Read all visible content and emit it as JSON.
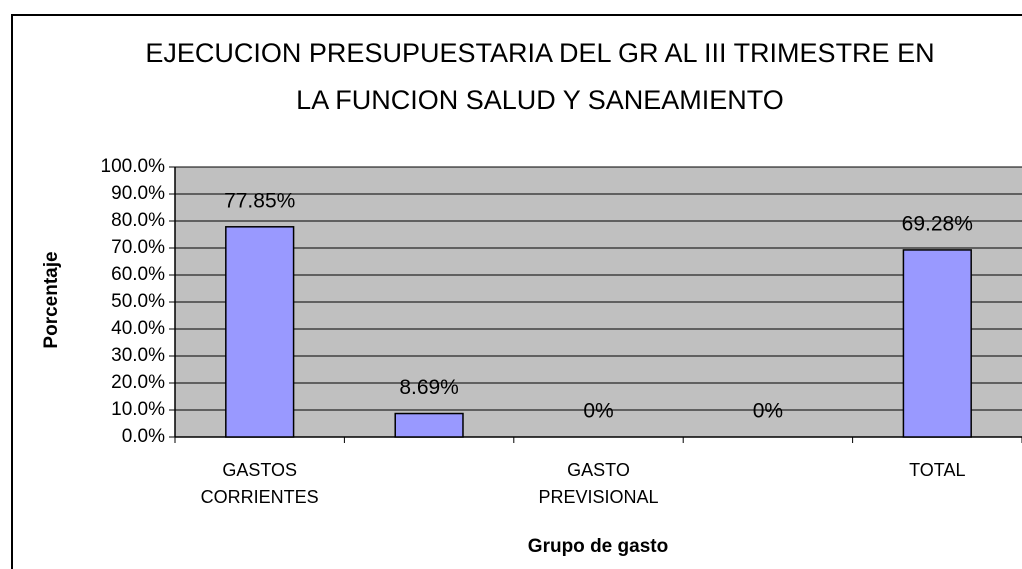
{
  "chart_data": {
    "type": "bar",
    "title": "EJECUCION PRESUPUESTARIA DEL GR AL III TRIMESTRE EN LA FUNCION SALUD Y SANEAMIENTO",
    "xlabel": "Grupo de gasto",
    "ylabel": "Porcentaje",
    "categories": [
      "GASTOS CORRIENTES",
      null,
      "GASTO PREVISIONAL",
      null,
      "TOTAL"
    ],
    "values": [
      77.85,
      8.69,
      0,
      0,
      69.28
    ],
    "value_labels": [
      "77.85%",
      "8.69%",
      "0%",
      "0%",
      "69.28%"
    ],
    "color": "#9999ff",
    "ylim": [
      0,
      100
    ],
    "yticks": [
      {
        "value": 0,
        "label": "0.0%"
      },
      {
        "value": 10,
        "label": "10.0%"
      },
      {
        "value": 20,
        "label": "20.0%"
      },
      {
        "value": 30,
        "label": "30.0%"
      },
      {
        "value": 40,
        "label": "40.0%"
      },
      {
        "value": 50,
        "label": "50.0%"
      },
      {
        "value": 60,
        "label": "60.0%"
      },
      {
        "value": 70,
        "label": "70.0%"
      },
      {
        "value": 80,
        "label": "80.0%"
      },
      {
        "value": 90,
        "label": "90.0%"
      },
      {
        "value": 100,
        "label": "100.0%"
      }
    ],
    "grid": true
  }
}
